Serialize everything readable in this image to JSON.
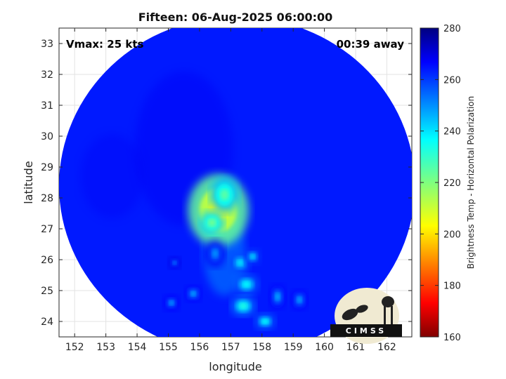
{
  "chart_data": {
    "type": "heatmap",
    "title": "Fifteen: 06-Aug-2025 06:00:00",
    "xlabel": "longitude",
    "ylabel": "latitude",
    "xlim": [
      151.5,
      162.8
    ],
    "ylim": [
      23.5,
      33.5
    ],
    "x_ticks": [
      152,
      153,
      154,
      155,
      156,
      157,
      158,
      159,
      160,
      161,
      162
    ],
    "y_ticks": [
      24,
      25,
      26,
      27,
      28,
      29,
      30,
      31,
      32,
      33
    ],
    "grid": true,
    "annotations": {
      "vmax": "Vmax: 25 kts",
      "time_offset": "00:39 away"
    },
    "colorbar": {
      "label": "Brightness Temp - Horizontal Polarization",
      "range": [
        160,
        280
      ],
      "ticks": [
        160,
        180,
        200,
        220,
        240,
        260,
        280
      ],
      "colormap": "jet",
      "location": "right"
    },
    "swath": {
      "center_lon": 157.2,
      "center_lat": 28.4,
      "radius_deg": 5.7
    },
    "features": [
      {
        "lon": 156.6,
        "lat": 27.6,
        "tb": 205,
        "sx": 0.75,
        "sy": 0.9
      },
      {
        "lon": 156.8,
        "lat": 28.1,
        "tb": 225,
        "sx": 0.35,
        "sy": 0.45
      },
      {
        "lon": 156.4,
        "lat": 27.2,
        "tb": 222,
        "sx": 0.3,
        "sy": 0.3
      },
      {
        "lon": 157.3,
        "lat": 25.9,
        "tb": 238,
        "sx": 0.25,
        "sy": 0.25
      },
      {
        "lon": 157.5,
        "lat": 25.2,
        "tb": 235,
        "sx": 0.3,
        "sy": 0.25
      },
      {
        "lon": 157.4,
        "lat": 24.5,
        "tb": 232,
        "sx": 0.3,
        "sy": 0.25
      },
      {
        "lon": 158.1,
        "lat": 24.0,
        "tb": 235,
        "sx": 0.25,
        "sy": 0.2
      },
      {
        "lon": 157.7,
        "lat": 26.1,
        "tb": 240,
        "sx": 0.2,
        "sy": 0.2
      },
      {
        "lon": 155.8,
        "lat": 24.9,
        "tb": 245,
        "sx": 0.2,
        "sy": 0.2
      },
      {
        "lon": 155.1,
        "lat": 24.6,
        "tb": 247,
        "sx": 0.2,
        "sy": 0.2
      },
      {
        "lon": 158.5,
        "lat": 24.8,
        "tb": 245,
        "sx": 0.2,
        "sy": 0.3
      },
      {
        "lon": 159.2,
        "lat": 24.7,
        "tb": 246,
        "sx": 0.2,
        "sy": 0.25
      },
      {
        "lon": 156.5,
        "lat": 26.2,
        "tb": 248,
        "sx": 0.25,
        "sy": 0.35
      },
      {
        "lon": 155.2,
        "lat": 25.9,
        "tb": 250,
        "sx": 0.15,
        "sy": 0.15
      }
    ],
    "background_tb": 262,
    "logo": "CIMSS"
  }
}
